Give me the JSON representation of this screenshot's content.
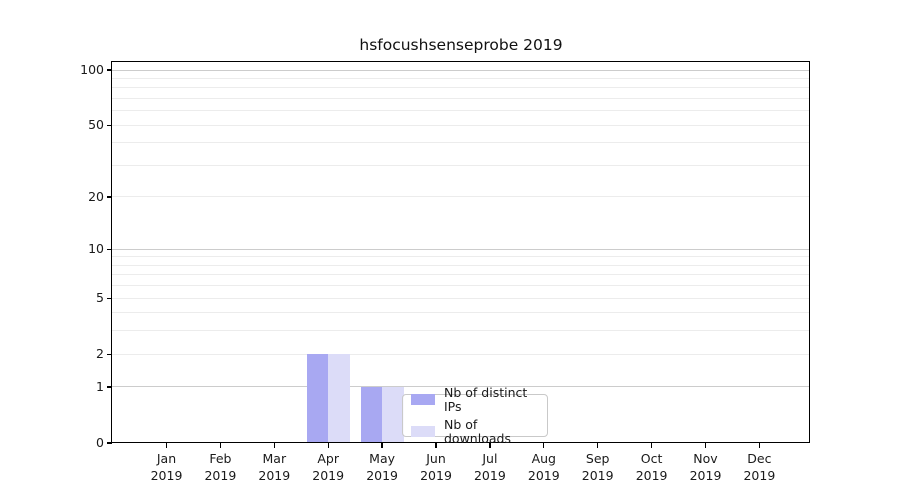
{
  "chart_data": {
    "type": "bar",
    "title": "hsfocushsenseprobe 2019",
    "months": [
      "Jan",
      "Feb",
      "Mar",
      "Apr",
      "May",
      "Jun",
      "Jul",
      "Aug",
      "Sep",
      "Oct",
      "Nov",
      "Dec"
    ],
    "year_label": "2019",
    "series": [
      {
        "name": "Nb of distinct IPs",
        "color": "#a8a8f2",
        "values": [
          0,
          0,
          0,
          2,
          1,
          0,
          0,
          0,
          0,
          0,
          0,
          0
        ]
      },
      {
        "name": "Nb of downloads",
        "color": "#dcdcf8",
        "values": [
          0,
          0,
          0,
          2,
          1,
          0,
          0,
          0,
          0,
          0,
          0,
          0
        ]
      }
    ],
    "y_ticks": [
      0,
      1,
      2,
      5,
      10,
      20,
      50,
      100
    ],
    "y_major_gridlines": [
      1,
      10,
      100
    ],
    "y_minor_gridlines": [
      2,
      3,
      4,
      5,
      6,
      7,
      8,
      9,
      20,
      30,
      40,
      50,
      60,
      70,
      80,
      90
    ],
    "yscale": "symlog(log(1+v))",
    "ylim": [
      0,
      110
    ],
    "xlabel": "",
    "ylabel": "",
    "grid": "horizontal",
    "legend_position": "lower right inside plot"
  },
  "colors": {
    "grid_major": "#cccccc",
    "grid_minor": "#ececec",
    "axis_spine": "#000000",
    "text": "#1a1a1a",
    "legend_border": "#c9c9c9",
    "background": "#ffffff"
  }
}
